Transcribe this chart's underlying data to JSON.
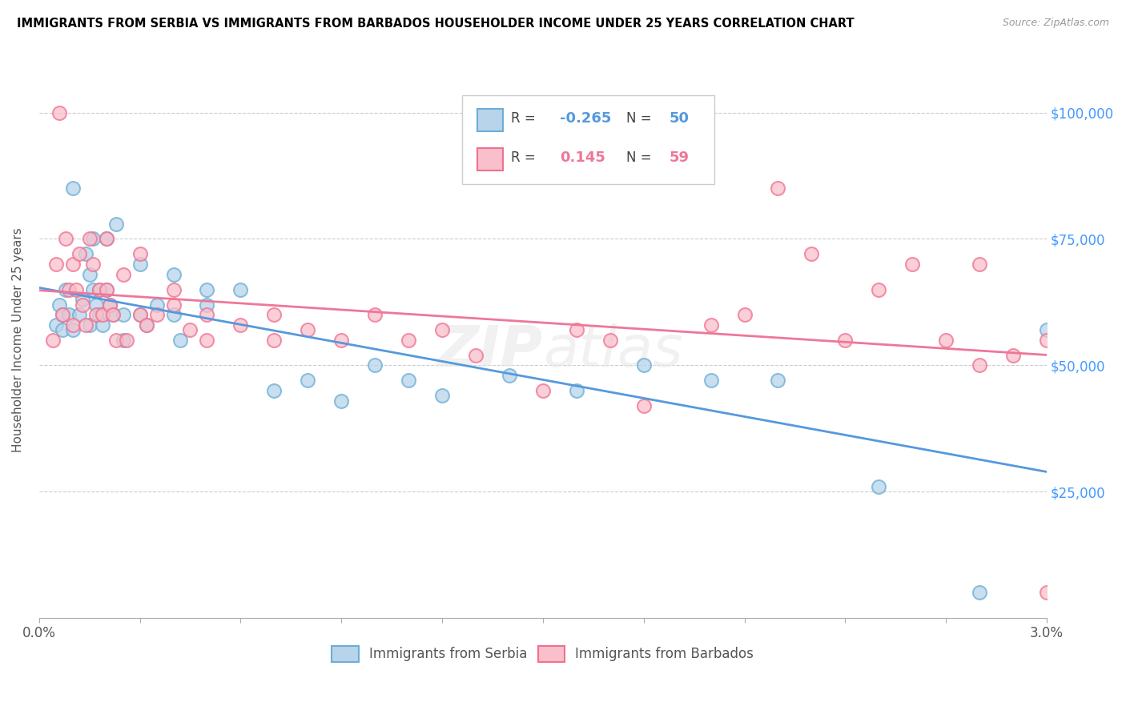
{
  "title": "IMMIGRANTS FROM SERBIA VS IMMIGRANTS FROM BARBADOS HOUSEHOLDER INCOME UNDER 25 YEARS CORRELATION CHART",
  "source": "Source: ZipAtlas.com",
  "ylabel": "Householder Income Under 25 years",
  "ytick_values": [
    25000,
    50000,
    75000,
    100000
  ],
  "ytick_labels_right": [
    "$25,000",
    "$50,000",
    "$75,000",
    "$100,000"
  ],
  "xmin": 0.0,
  "xmax": 0.03,
  "ymin": 0,
  "ymax": 110000,
  "serbia_fill_color": "#b8d4ea",
  "serbia_edge_color": "#6baed6",
  "barbados_fill_color": "#f9bfca",
  "barbados_edge_color": "#f07090",
  "serbia_line_color": "#5599dd",
  "barbados_line_color": "#ee7799",
  "right_axis_color": "#4499ff",
  "serbia_R": -0.265,
  "serbia_N": 50,
  "barbados_R": 0.145,
  "barbados_N": 59,
  "serbia_scatter_x": [
    0.0005,
    0.0006,
    0.0007,
    0.0007,
    0.0008,
    0.0009,
    0.001,
    0.001,
    0.0012,
    0.0013,
    0.0014,
    0.0015,
    0.0015,
    0.0016,
    0.0016,
    0.0017,
    0.0018,
    0.0018,
    0.0019,
    0.002,
    0.002,
    0.0021,
    0.0022,
    0.0023,
    0.0025,
    0.0025,
    0.003,
    0.003,
    0.0032,
    0.0035,
    0.004,
    0.004,
    0.0042,
    0.005,
    0.005,
    0.006,
    0.007,
    0.008,
    0.009,
    0.01,
    0.011,
    0.012,
    0.014,
    0.016,
    0.018,
    0.02,
    0.022,
    0.025,
    0.028,
    0.03
  ],
  "serbia_scatter_y": [
    58000,
    62000,
    60000,
    57000,
    65000,
    60000,
    85000,
    57000,
    60000,
    63000,
    72000,
    68000,
    58000,
    75000,
    65000,
    62000,
    65000,
    60000,
    58000,
    75000,
    65000,
    62000,
    60000,
    78000,
    60000,
    55000,
    70000,
    60000,
    58000,
    62000,
    68000,
    60000,
    55000,
    65000,
    62000,
    65000,
    45000,
    47000,
    43000,
    50000,
    47000,
    44000,
    48000,
    45000,
    50000,
    47000,
    47000,
    26000,
    5000,
    57000
  ],
  "barbados_scatter_x": [
    0.0004,
    0.0005,
    0.0006,
    0.0007,
    0.0008,
    0.0009,
    0.001,
    0.001,
    0.0011,
    0.0012,
    0.0013,
    0.0014,
    0.0015,
    0.0016,
    0.0017,
    0.0018,
    0.0019,
    0.002,
    0.002,
    0.0021,
    0.0022,
    0.0023,
    0.0025,
    0.0026,
    0.003,
    0.003,
    0.0032,
    0.0035,
    0.004,
    0.004,
    0.0045,
    0.005,
    0.005,
    0.006,
    0.007,
    0.007,
    0.008,
    0.009,
    0.01,
    0.011,
    0.012,
    0.013,
    0.015,
    0.016,
    0.017,
    0.018,
    0.02,
    0.021,
    0.022,
    0.023,
    0.024,
    0.025,
    0.026,
    0.027,
    0.028,
    0.028,
    0.029,
    0.03,
    0.03
  ],
  "barbados_scatter_y": [
    55000,
    70000,
    100000,
    60000,
    75000,
    65000,
    70000,
    58000,
    65000,
    72000,
    62000,
    58000,
    75000,
    70000,
    60000,
    65000,
    60000,
    75000,
    65000,
    62000,
    60000,
    55000,
    68000,
    55000,
    72000,
    60000,
    58000,
    60000,
    65000,
    62000,
    57000,
    60000,
    55000,
    58000,
    60000,
    55000,
    57000,
    55000,
    60000,
    55000,
    57000,
    52000,
    45000,
    57000,
    55000,
    42000,
    58000,
    60000,
    85000,
    72000,
    55000,
    65000,
    70000,
    55000,
    50000,
    70000,
    52000,
    55000,
    5000
  ]
}
